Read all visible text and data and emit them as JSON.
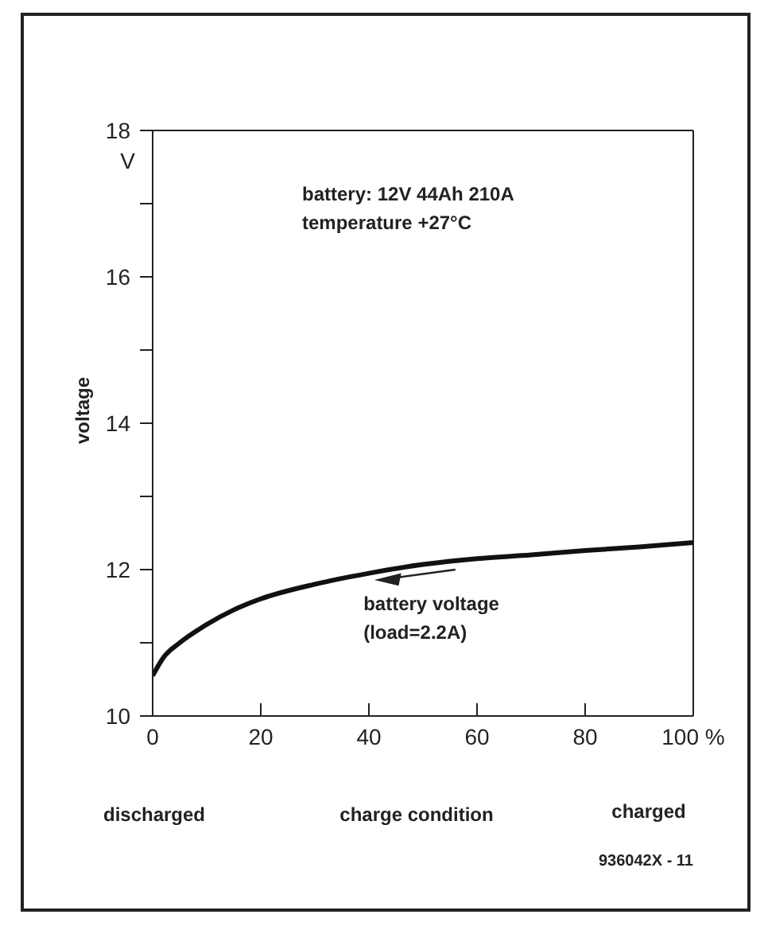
{
  "chart_data": {
    "type": "line",
    "ylabel": "voltage",
    "xlabel": "charge condition",
    "annotations": [
      "battery: 12V 44Ah 210A",
      "temperature +27°C",
      "V",
      "discharged",
      "charged",
      "936042X - 11"
    ],
    "x": [
      0,
      2,
      5,
      10,
      15,
      20,
      30,
      40,
      50,
      60,
      70,
      80,
      90,
      100
    ],
    "series": [
      {
        "name": "battery voltage (load=2.2A)",
        "color": "#111111",
        "values": [
          10.55,
          10.8,
          11.0,
          11.25,
          11.45,
          11.6,
          11.8,
          11.95,
          12.07,
          12.15,
          12.2,
          12.26,
          12.31,
          12.37
        ]
      }
    ],
    "xlim": [
      0,
      100
    ],
    "ylim": [
      10,
      18
    ],
    "xticks": [
      0,
      20,
      40,
      60,
      80,
      {
        "value": 100,
        "label": "100 %"
      }
    ],
    "yticks": [
      10,
      {
        "value": 11,
        "label": null
      },
      12,
      {
        "value": 13,
        "label": null
      },
      14,
      {
        "value": 15,
        "label": null
      },
      16,
      {
        "value": 17,
        "label": null
      },
      18
    ],
    "grid": false,
    "legend": false,
    "marker": "none",
    "line_style": "solid"
  }
}
